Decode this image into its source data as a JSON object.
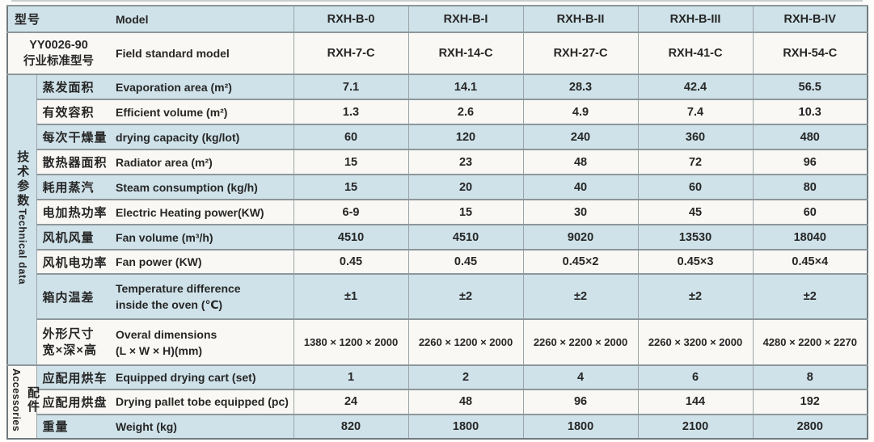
{
  "colors": {
    "row_blue": "#cfe2e9",
    "row_white": "#f9f8f4",
    "grid_line": "#8d979b",
    "outer_border": "#6f7a7f",
    "text": "#262626"
  },
  "header": {
    "model_label_cn": "型号",
    "model_label_en": "Model",
    "models": [
      "RXH-B-0",
      "RXH-B-I",
      "RXH-B-II",
      "RXH-B-III",
      "RXH-B-IV"
    ],
    "standard_label_cn_lines": [
      "YY0026-90",
      "行业标准型号"
    ],
    "standard_label_en": "Field standard model",
    "standard_models": [
      "RXH-7-C",
      "RXH-14-C",
      "RXH-27-C",
      "RXH-41-C",
      "RXH-54-C"
    ]
  },
  "groups": {
    "technical": {
      "cn": "技术参数",
      "en": "Technical data"
    },
    "accessories": {
      "cn": "配件",
      "en": "Accessories"
    }
  },
  "rows": [
    {
      "cn": "蒸发面积",
      "en": "Evaporation area (m²)",
      "values": [
        "7.1",
        "14.1",
        "28.3",
        "42.4",
        "56.5"
      ]
    },
    {
      "cn": "有效容积",
      "en": "Efficient volume (m²)",
      "values": [
        "1.3",
        "2.6",
        "4.9",
        "7.4",
        "10.3"
      ]
    },
    {
      "cn": "每次干燥量",
      "en": "drying capacity (kg/lot)",
      "values": [
        "60",
        "120",
        "240",
        "360",
        "480"
      ]
    },
    {
      "cn": "散热器面积",
      "en": "Radiator area (m²)",
      "values": [
        "15",
        "23",
        "48",
        "72",
        "96"
      ]
    },
    {
      "cn": "耗用蒸汽",
      "en": "Steam consumption (kg/h)",
      "values": [
        "15",
        "20",
        "40",
        "60",
        "80"
      ]
    },
    {
      "cn": "电加热功率",
      "en": "Electric Heating power(KW)",
      "values": [
        "6-9",
        "15",
        "30",
        "45",
        "60"
      ]
    },
    {
      "cn": "风机风量",
      "en": "Fan volume (m³/h)",
      "values": [
        "4510",
        "4510",
        "9020",
        "13530",
        "18040"
      ]
    },
    {
      "cn": "风机电功率",
      "en": "Fan power (KW)",
      "values": [
        "0.45",
        "0.45",
        "0.45×2",
        "0.45×3",
        "0.45×4"
      ]
    },
    {
      "cn": "箱内温差",
      "en": [
        "Temperature difference",
        "inside the oven (℃)"
      ],
      "values": [
        "±1",
        "±2",
        "±2",
        "±2",
        "±2"
      ]
    },
    {
      "cn": [
        "外形尺寸",
        "宽×深×高"
      ],
      "en": [
        "Overal dimensions",
        "(L × W × H)(mm)"
      ],
      "values": [
        "1380 × 1200 × 2000",
        "2260 × 1200 × 2000",
        "2260 × 2200 × 2000",
        "2260 × 3200 × 2000",
        "4280 × 2200 × 2270"
      ],
      "small": true
    },
    {
      "cn": "应配用烘车",
      "en": "Equipped drying cart (set)",
      "values": [
        "1",
        "2",
        "4",
        "6",
        "8"
      ]
    },
    {
      "cn": "应配用烘盘",
      "en": "Drying pallet tobe equipped (pc)",
      "values": [
        "24",
        "48",
        "96",
        "144",
        "192"
      ]
    },
    {
      "cn": "重量",
      "en": "Weight (kg)",
      "values": [
        "820",
        "1800",
        "1800",
        "2100",
        "2800"
      ]
    }
  ]
}
